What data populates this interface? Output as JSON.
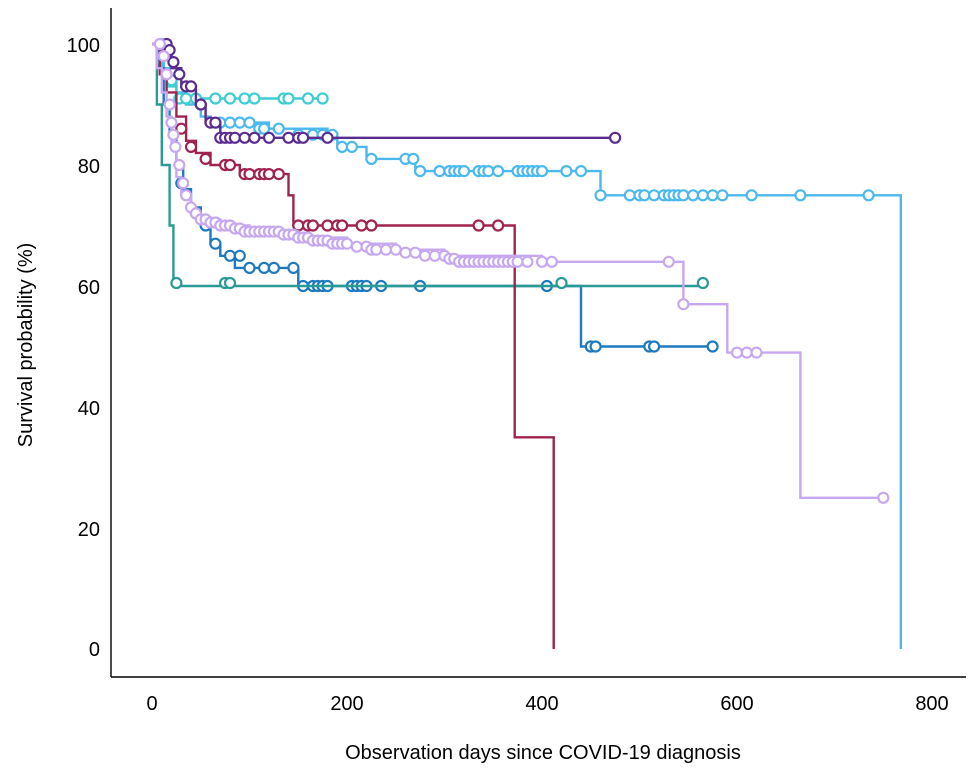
{
  "chart_data": {
    "type": "line",
    "xlabel": "Observation days since COVID-19 diagnosis",
    "ylabel": "Survival probability (%)",
    "xlim": [
      0,
      800
    ],
    "ylim": [
      0,
      100
    ],
    "x_ticks": [
      "0",
      "200",
      "400",
      "600",
      "800"
    ],
    "y_ticks": [
      "0",
      "20",
      "40",
      "60",
      "80",
      "100"
    ],
    "grid": false,
    "legend": "none",
    "series": [
      {
        "color": "#4BB8EE",
        "steps": [
          [
            0,
            100
          ],
          [
            8,
            98
          ],
          [
            12,
            96
          ],
          [
            18,
            94
          ],
          [
            25,
            92
          ],
          [
            35,
            90
          ],
          [
            50,
            88
          ],
          [
            60,
            87
          ],
          [
            120,
            86
          ],
          [
            180,
            85
          ],
          [
            190,
            83
          ],
          [
            220,
            81
          ],
          [
            270,
            79
          ],
          [
            460,
            75
          ],
          [
            768,
            75
          ],
          [
            768,
            0
          ]
        ],
        "censor": [
          [
            70,
            87
          ],
          [
            80,
            87
          ],
          [
            90,
            87
          ],
          [
            100,
            87
          ],
          [
            110,
            86
          ],
          [
            115,
            86
          ],
          [
            130,
            86
          ],
          [
            150,
            85
          ],
          [
            165,
            85
          ],
          [
            175,
            85
          ],
          [
            185,
            85
          ],
          [
            195,
            83
          ],
          [
            205,
            83
          ],
          [
            225,
            81
          ],
          [
            260,
            81
          ],
          [
            268,
            81
          ],
          [
            275,
            79
          ],
          [
            295,
            79
          ],
          [
            305,
            79
          ],
          [
            310,
            79
          ],
          [
            315,
            79
          ],
          [
            320,
            79
          ],
          [
            335,
            79
          ],
          [
            340,
            79
          ],
          [
            345,
            79
          ],
          [
            355,
            79
          ],
          [
            375,
            79
          ],
          [
            380,
            79
          ],
          [
            385,
            79
          ],
          [
            390,
            79
          ],
          [
            395,
            79
          ],
          [
            400,
            79
          ],
          [
            425,
            79
          ],
          [
            440,
            79
          ],
          [
            460,
            75
          ],
          [
            490,
            75
          ],
          [
            500,
            75
          ],
          [
            505,
            75
          ],
          [
            515,
            75
          ],
          [
            525,
            75
          ],
          [
            530,
            75
          ],
          [
            535,
            75
          ],
          [
            540,
            75
          ],
          [
            545,
            75
          ],
          [
            555,
            75
          ],
          [
            565,
            75
          ],
          [
            575,
            75
          ],
          [
            585,
            75
          ],
          [
            615,
            75
          ],
          [
            665,
            75
          ],
          [
            735,
            75
          ]
        ]
      },
      {
        "color": "#1E79BE",
        "steps": [
          [
            0,
            100
          ],
          [
            6,
            96
          ],
          [
            12,
            90
          ],
          [
            18,
            85
          ],
          [
            25,
            80
          ],
          [
            32,
            76
          ],
          [
            40,
            73
          ],
          [
            50,
            70
          ],
          [
            60,
            67
          ],
          [
            70,
            65
          ],
          [
            85,
            63
          ],
          [
            150,
            60
          ],
          [
            440,
            50
          ],
          [
            580,
            50
          ]
        ],
        "censor": [
          [
            30,
            77
          ],
          [
            45,
            72
          ],
          [
            55,
            70
          ],
          [
            65,
            67
          ],
          [
            80,
            65
          ],
          [
            90,
            65
          ],
          [
            100,
            63
          ],
          [
            115,
            63
          ],
          [
            125,
            63
          ],
          [
            145,
            63
          ],
          [
            155,
            60
          ],
          [
            165,
            60
          ],
          [
            170,
            60
          ],
          [
            175,
            60
          ],
          [
            180,
            60
          ],
          [
            205,
            60
          ],
          [
            210,
            60
          ],
          [
            215,
            60
          ],
          [
            220,
            60
          ],
          [
            235,
            60
          ],
          [
            275,
            60
          ],
          [
            405,
            60
          ],
          [
            450,
            50
          ],
          [
            455,
            50
          ],
          [
            510,
            50
          ],
          [
            515,
            50
          ],
          [
            575,
            50
          ]
        ]
      },
      {
        "color": "#2A9A94",
        "steps": [
          [
            0,
            100
          ],
          [
            5,
            90
          ],
          [
            10,
            80
          ],
          [
            18,
            70
          ],
          [
            22,
            60
          ],
          [
            570,
            60
          ]
        ],
        "censor": [
          [
            25,
            60.5
          ],
          [
            75,
            60.5
          ],
          [
            80,
            60.5
          ],
          [
            420,
            60.5
          ],
          [
            565,
            60.5
          ]
        ]
      },
      {
        "color": "#3ECDD3",
        "steps": [
          [
            0,
            100
          ],
          [
            5,
            97
          ],
          [
            10,
            95
          ],
          [
            15,
            93
          ],
          [
            25,
            91
          ],
          [
            180,
            91
          ]
        ],
        "censor": [
          [
            10,
            100
          ],
          [
            20,
            94
          ],
          [
            28,
            91
          ],
          [
            35,
            91
          ],
          [
            45,
            91
          ],
          [
            65,
            91
          ],
          [
            80,
            91
          ],
          [
            95,
            91
          ],
          [
            105,
            91
          ],
          [
            135,
            91
          ],
          [
            140,
            91
          ],
          [
            160,
            91
          ],
          [
            175,
            91
          ]
        ]
      },
      {
        "color": "#5B2C90",
        "steps": [
          [
            0,
            100
          ],
          [
            10,
            98
          ],
          [
            20,
            96
          ],
          [
            30,
            93
          ],
          [
            45,
            90
          ],
          [
            55,
            87
          ],
          [
            70,
            84.5
          ],
          [
            480,
            84.5
          ]
        ],
        "censor": [
          [
            15,
            100
          ],
          [
            18,
            99
          ],
          [
            22,
            97
          ],
          [
            28,
            95
          ],
          [
            35,
            93
          ],
          [
            40,
            93
          ],
          [
            50,
            90
          ],
          [
            60,
            87
          ],
          [
            65,
            87
          ],
          [
            70,
            84.5
          ],
          [
            75,
            84.5
          ],
          [
            80,
            84.5
          ],
          [
            85,
            84.5
          ],
          [
            95,
            84.5
          ],
          [
            105,
            84.5
          ],
          [
            120,
            84.5
          ],
          [
            140,
            84.5
          ],
          [
            150,
            84.5
          ],
          [
            155,
            84.5
          ],
          [
            180,
            84.5
          ],
          [
            475,
            84.5
          ]
        ]
      },
      {
        "color": "#A0224F",
        "steps": [
          [
            0,
            100
          ],
          [
            8,
            95
          ],
          [
            15,
            92
          ],
          [
            25,
            88
          ],
          [
            35,
            84
          ],
          [
            45,
            82
          ],
          [
            60,
            80
          ],
          [
            90,
            78.5
          ],
          [
            140,
            75
          ],
          [
            145,
            70
          ],
          [
            365,
            70
          ],
          [
            372,
            35
          ],
          [
            412,
            35
          ],
          [
            412,
            0
          ]
        ],
        "censor": [
          [
            30,
            86
          ],
          [
            40,
            83
          ],
          [
            55,
            81
          ],
          [
            75,
            80
          ],
          [
            80,
            80
          ],
          [
            95,
            78.5
          ],
          [
            100,
            78.5
          ],
          [
            110,
            78.5
          ],
          [
            115,
            78.5
          ],
          [
            120,
            78.5
          ],
          [
            130,
            78.5
          ],
          [
            150,
            70
          ],
          [
            160,
            70
          ],
          [
            165,
            70
          ],
          [
            180,
            70
          ],
          [
            190,
            70
          ],
          [
            195,
            70
          ],
          [
            215,
            70
          ],
          [
            225,
            70
          ],
          [
            335,
            70
          ],
          [
            355,
            70
          ]
        ]
      },
      {
        "color": "#C7A8F0",
        "steps": [
          [
            0,
            100
          ],
          [
            5,
            96
          ],
          [
            10,
            92
          ],
          [
            15,
            88
          ],
          [
            20,
            83
          ],
          [
            25,
            78
          ],
          [
            30,
            75
          ],
          [
            40,
            72
          ],
          [
            50,
            71
          ],
          [
            70,
            70
          ],
          [
            100,
            69
          ],
          [
            150,
            68
          ],
          [
            200,
            67
          ],
          [
            250,
            66
          ],
          [
            300,
            65
          ],
          [
            400,
            64
          ],
          [
            530,
            64
          ],
          [
            545,
            57
          ],
          [
            590,
            49
          ],
          [
            665,
            49
          ],
          [
            665,
            25
          ],
          [
            750,
            25
          ]
        ],
        "censor": [
          [
            8,
            100
          ],
          [
            12,
            98
          ],
          [
            15,
            95
          ],
          [
            18,
            90
          ],
          [
            20,
            87
          ],
          [
            22,
            85
          ],
          [
            24,
            83
          ],
          [
            28,
            80
          ],
          [
            32,
            77
          ],
          [
            35,
            75
          ],
          [
            40,
            73
          ],
          [
            45,
            72
          ],
          [
            50,
            71
          ],
          [
            55,
            71
          ],
          [
            60,
            70.5
          ],
          [
            65,
            70.5
          ],
          [
            70,
            70
          ],
          [
            75,
            70
          ],
          [
            80,
            70
          ],
          [
            85,
            69.5
          ],
          [
            90,
            69.5
          ],
          [
            95,
            69
          ],
          [
            100,
            69
          ],
          [
            105,
            69
          ],
          [
            110,
            69
          ],
          [
            115,
            69
          ],
          [
            120,
            69
          ],
          [
            125,
            69
          ],
          [
            130,
            69
          ],
          [
            135,
            68.5
          ],
          [
            140,
            68.5
          ],
          [
            145,
            68.5
          ],
          [
            150,
            68
          ],
          [
            155,
            68
          ],
          [
            160,
            68
          ],
          [
            165,
            67.5
          ],
          [
            170,
            67.5
          ],
          [
            175,
            67.5
          ],
          [
            180,
            67.5
          ],
          [
            185,
            67
          ],
          [
            190,
            67
          ],
          [
            195,
            67
          ],
          [
            200,
            67
          ],
          [
            210,
            66.5
          ],
          [
            220,
            66.5
          ],
          [
            225,
            66
          ],
          [
            230,
            66
          ],
          [
            240,
            66
          ],
          [
            250,
            66
          ],
          [
            260,
            65.5
          ],
          [
            270,
            65.5
          ],
          [
            280,
            65
          ],
          [
            290,
            65
          ],
          [
            300,
            65
          ],
          [
            305,
            64.5
          ],
          [
            310,
            64.5
          ],
          [
            315,
            64
          ],
          [
            320,
            64
          ],
          [
            325,
            64
          ],
          [
            330,
            64
          ],
          [
            335,
            64
          ],
          [
            340,
            64
          ],
          [
            345,
            64
          ],
          [
            350,
            64
          ],
          [
            355,
            64
          ],
          [
            360,
            64
          ],
          [
            365,
            64
          ],
          [
            370,
            64
          ],
          [
            375,
            64
          ],
          [
            385,
            64
          ],
          [
            400,
            64
          ],
          [
            410,
            64
          ],
          [
            530,
            64
          ],
          [
            545,
            57
          ],
          [
            600,
            49
          ],
          [
            610,
            49
          ],
          [
            620,
            49
          ],
          [
            750,
            25
          ]
        ]
      }
    ]
  }
}
